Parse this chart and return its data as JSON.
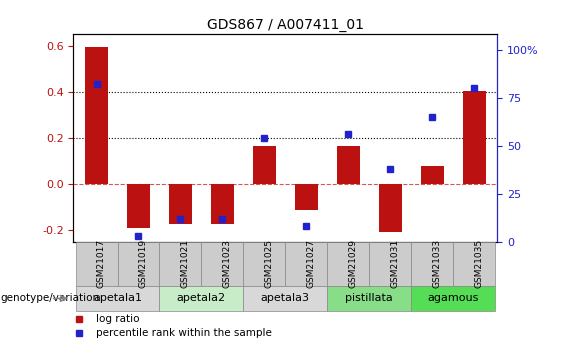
{
  "title": "GDS867 / A007411_01",
  "samples": [
    "GSM21017",
    "GSM21019",
    "GSM21021",
    "GSM21023",
    "GSM21025",
    "GSM21027",
    "GSM21029",
    "GSM21031",
    "GSM21033",
    "GSM21035"
  ],
  "log_ratio": [
    0.595,
    -0.19,
    -0.175,
    -0.175,
    0.165,
    -0.115,
    0.165,
    -0.21,
    0.08,
    0.405
  ],
  "percentile_rank": [
    82,
    3,
    12,
    12,
    54,
    8,
    56,
    38,
    65,
    80
  ],
  "bar_color": "#bb1111",
  "dot_color": "#2222cc",
  "ylim_left": [
    -0.25,
    0.65
  ],
  "ylim_right": [
    0,
    108.0
  ],
  "yticks_left": [
    -0.2,
    0.0,
    0.2,
    0.4,
    0.6
  ],
  "yticks_right": [
    0,
    25,
    50,
    75,
    100
  ],
  "ytick_labels_right": [
    "0",
    "25",
    "50",
    "75",
    "100%"
  ],
  "hlines": [
    0.2,
    0.4
  ],
  "groups": [
    {
      "label": "apetala1",
      "cols": [
        0,
        1
      ],
      "color": "#d8d8d8"
    },
    {
      "label": "apetala2",
      "cols": [
        2,
        3
      ],
      "color": "#c8ecc8"
    },
    {
      "label": "apetala3",
      "cols": [
        4,
        5
      ],
      "color": "#d8d8d8"
    },
    {
      "label": "pistillata",
      "cols": [
        6,
        7
      ],
      "color": "#88dd88"
    },
    {
      "label": "agamous",
      "cols": [
        8,
        9
      ],
      "color": "#55dd55"
    }
  ],
  "sample_box_color": "#cccccc",
  "sample_box_edge": "#888888",
  "legend_items": [
    {
      "label": "log ratio",
      "color": "#bb1111"
    },
    {
      "label": "percentile rank within the sample",
      "color": "#2222cc"
    }
  ],
  "genotype_label": "genotype/variation",
  "bar_width": 0.55
}
